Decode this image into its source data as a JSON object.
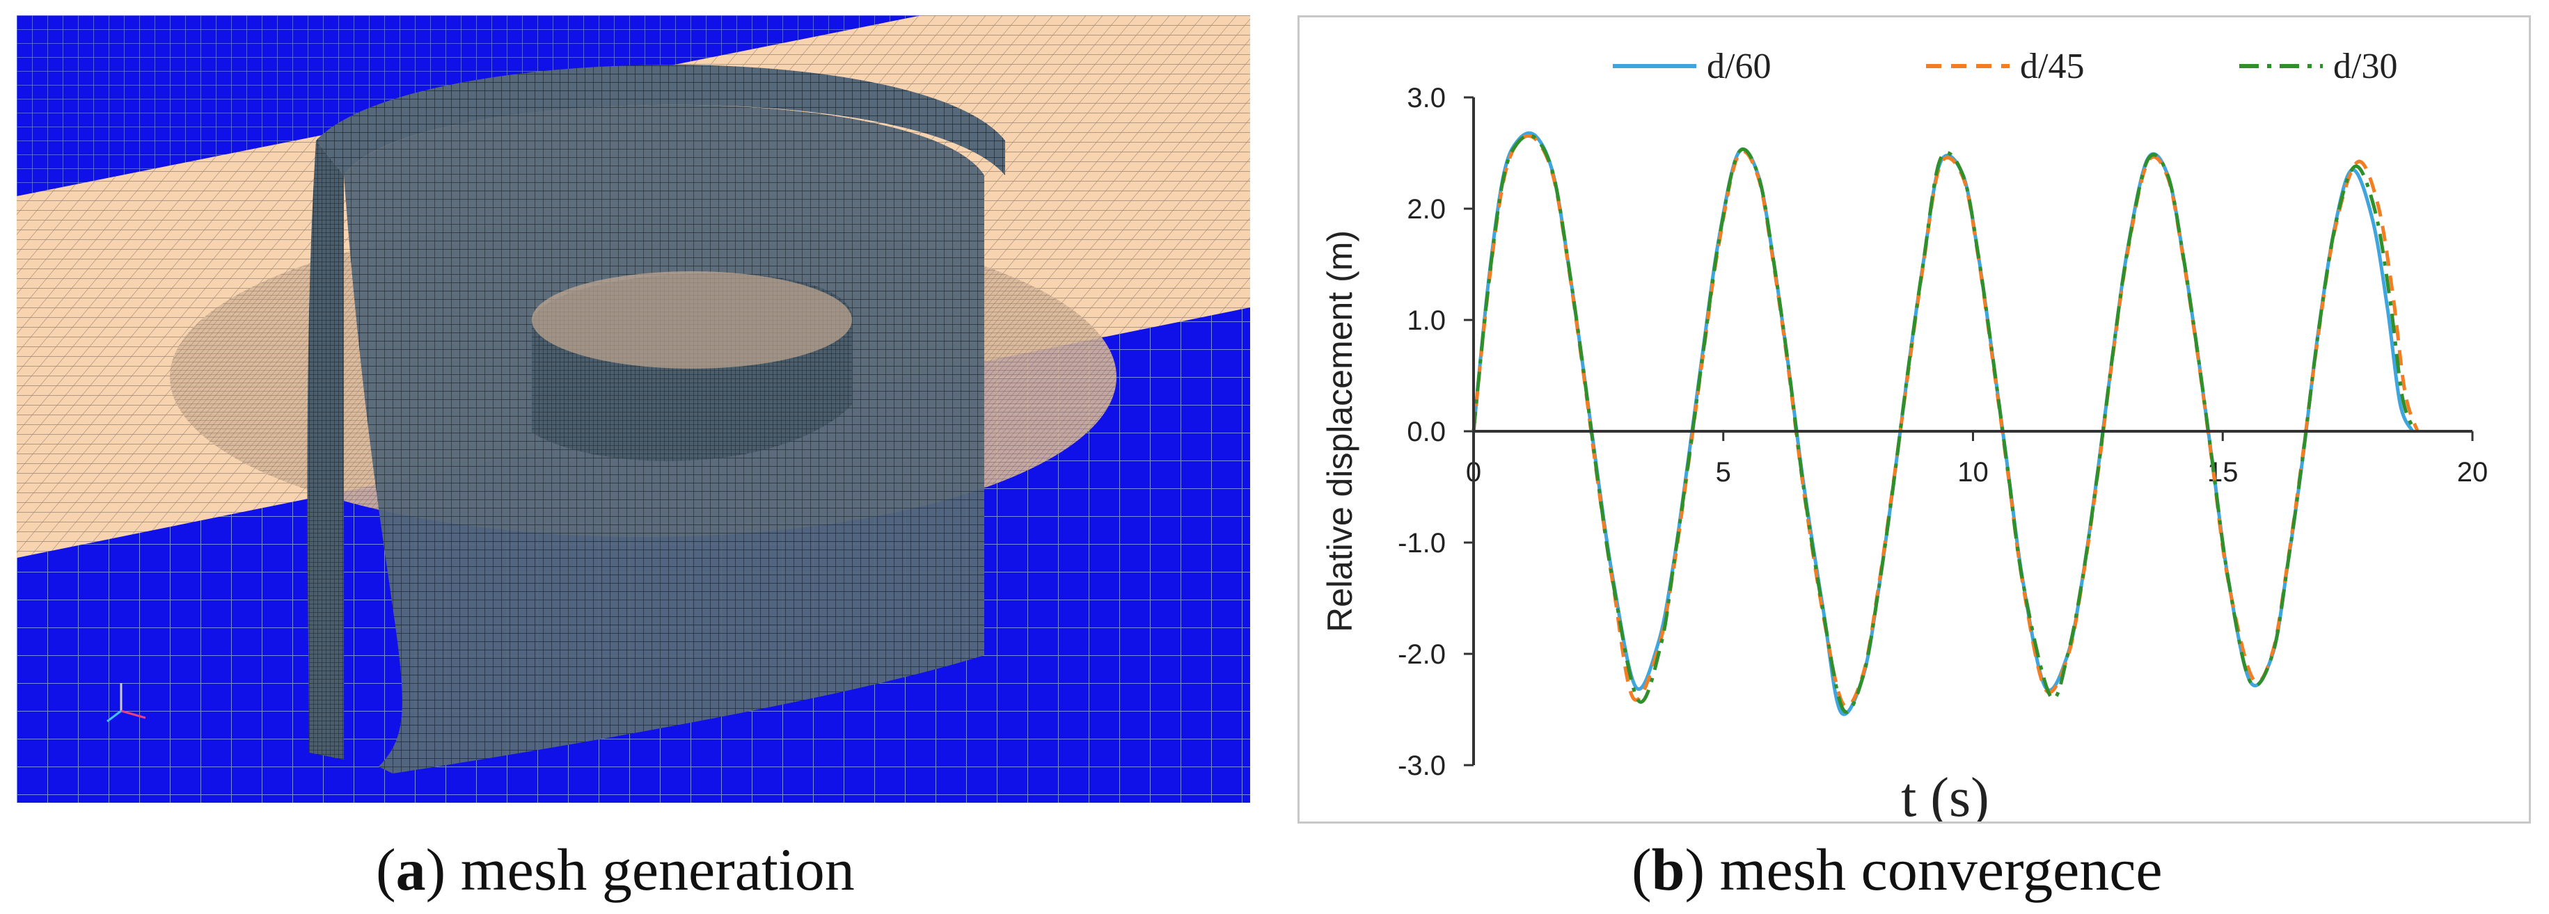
{
  "captions": {
    "a": {
      "letter": "a",
      "text": "mesh generation"
    },
    "b": {
      "letter": "b",
      "text": "mesh convergence"
    }
  },
  "colors": {
    "water_blue": "#1010e8",
    "seabed_beige": "#f7d3b0",
    "structure_slate": "#4a5e6d",
    "d60": "#3ea5de",
    "d45": "#f37d22",
    "d30": "#2f8f2a"
  },
  "chart_data": {
    "type": "line",
    "title": "",
    "xlabel": "t (s)",
    "ylabel": "Relative displacement (m)",
    "xlim": [
      0,
      20
    ],
    "ylim": [
      -3.0,
      3.0
    ],
    "xticks": [
      0,
      5,
      10,
      15,
      20
    ],
    "yticks": [
      "3.0",
      "2.0",
      "1.0",
      "0.0",
      "-1.0",
      "-2.0",
      "-3.0"
    ],
    "yticks_values": [
      3,
      2,
      1,
      0,
      -1,
      -2,
      -3
    ],
    "legend": "top",
    "grid": false,
    "series": [
      {
        "name": "d/60",
        "style": "solid",
        "x": [
          0,
          0.3,
          0.6,
          0.9,
          1.25,
          1.6,
          1.9,
          2.2,
          2.5,
          2.8,
          3.25,
          3.7,
          4.0,
          4.3,
          4.6,
          4.9,
          5.3,
          5.7,
          6.0,
          6.3,
          6.6,
          7.0,
          7.35,
          7.8,
          8.1,
          8.4,
          8.7,
          9.0,
          9.35,
          9.8,
          10.1,
          10.4,
          10.7,
          11.0,
          11.45,
          11.9,
          12.2,
          12.5,
          12.8,
          13.1,
          13.5,
          13.9,
          14.2,
          14.5,
          14.8,
          15.1,
          15.55,
          16.0,
          16.3,
          16.6,
          16.9,
          17.25,
          17.6,
          18.0,
          18.3,
          18.55,
          18.8
        ],
        "y": [
          0.0,
          1.35,
          2.3,
          2.62,
          2.65,
          2.3,
          1.5,
          0.55,
          -0.45,
          -1.35,
          -2.3,
          -1.9,
          -1.2,
          -0.25,
          0.75,
          1.7,
          2.5,
          2.3,
          1.55,
          0.6,
          -0.45,
          -1.6,
          -2.52,
          -2.2,
          -1.45,
          -0.5,
          0.55,
          1.5,
          2.42,
          2.3,
          1.6,
          0.65,
          -0.35,
          -1.35,
          -2.3,
          -2.0,
          -1.3,
          -0.35,
          0.7,
          1.65,
          2.45,
          2.3,
          1.6,
          0.7,
          -0.3,
          -1.3,
          -2.25,
          -2.0,
          -1.2,
          -0.25,
          0.85,
          1.85,
          2.35,
          1.9,
          1.1,
          0.25,
          0.0
        ]
      },
      {
        "name": "d/45",
        "style": "dashed",
        "x": [
          0,
          0.3,
          0.6,
          0.9,
          1.25,
          1.6,
          1.9,
          2.2,
          2.5,
          2.8,
          3.2,
          3.7,
          4.0,
          4.3,
          4.6,
          4.9,
          5.3,
          5.7,
          6.0,
          6.3,
          6.6,
          7.0,
          7.4,
          7.8,
          8.1,
          8.4,
          8.7,
          9.0,
          9.35,
          9.8,
          10.1,
          10.4,
          10.7,
          11.0,
          11.45,
          11.9,
          12.2,
          12.5,
          12.8,
          13.1,
          13.5,
          13.9,
          14.2,
          14.5,
          14.8,
          15.1,
          15.6,
          16.0,
          16.3,
          16.6,
          16.9,
          17.25,
          17.7,
          18.1,
          18.4,
          18.65,
          18.9
        ],
        "y": [
          0.0,
          1.3,
          2.25,
          2.6,
          2.62,
          2.28,
          1.48,
          0.52,
          -0.5,
          -1.4,
          -2.4,
          -1.95,
          -1.25,
          -0.3,
          0.7,
          1.65,
          2.48,
          2.28,
          1.52,
          0.57,
          -0.5,
          -1.65,
          -2.45,
          -2.18,
          -1.42,
          -0.48,
          0.52,
          1.48,
          2.4,
          2.28,
          1.58,
          0.62,
          -0.38,
          -1.38,
          -2.32,
          -2.02,
          -1.32,
          -0.38,
          0.68,
          1.62,
          2.42,
          2.28,
          1.58,
          0.68,
          -0.32,
          -1.32,
          -2.22,
          -1.98,
          -1.18,
          -0.22,
          0.82,
          1.82,
          2.42,
          2.05,
          1.25,
          0.35,
          0.0
        ]
      },
      {
        "name": "d/30",
        "style": "dashdot",
        "x": [
          0,
          0.3,
          0.6,
          0.9,
          1.25,
          1.6,
          1.9,
          2.2,
          2.5,
          2.8,
          3.3,
          3.75,
          4.0,
          4.3,
          4.6,
          4.9,
          5.3,
          5.7,
          6.0,
          6.3,
          6.6,
          7.0,
          7.4,
          7.8,
          8.1,
          8.4,
          8.7,
          9.0,
          9.35,
          9.8,
          10.1,
          10.4,
          10.7,
          11.0,
          11.55,
          11.9,
          12.2,
          12.5,
          12.8,
          13.1,
          13.5,
          13.9,
          14.2,
          14.5,
          14.8,
          15.1,
          15.55,
          16.0,
          16.3,
          16.6,
          16.9,
          17.25,
          17.65,
          18.05,
          18.35,
          18.6,
          18.85
        ],
        "y": [
          0.0,
          1.32,
          2.28,
          2.6,
          2.63,
          2.3,
          1.5,
          0.55,
          -0.48,
          -1.38,
          -2.42,
          -1.92,
          -1.22,
          -0.28,
          0.72,
          1.68,
          2.5,
          2.3,
          1.55,
          0.6,
          -0.48,
          -1.62,
          -2.5,
          -2.2,
          -1.45,
          -0.5,
          0.55,
          1.5,
          2.45,
          2.3,
          1.6,
          0.65,
          -0.36,
          -1.36,
          -2.38,
          -2.0,
          -1.3,
          -0.36,
          0.7,
          1.64,
          2.44,
          2.3,
          1.6,
          0.7,
          -0.3,
          -1.3,
          -2.25,
          -2.0,
          -1.2,
          -0.24,
          0.84,
          1.84,
          2.38,
          1.98,
          1.18,
          0.3,
          0.0
        ]
      }
    ]
  }
}
